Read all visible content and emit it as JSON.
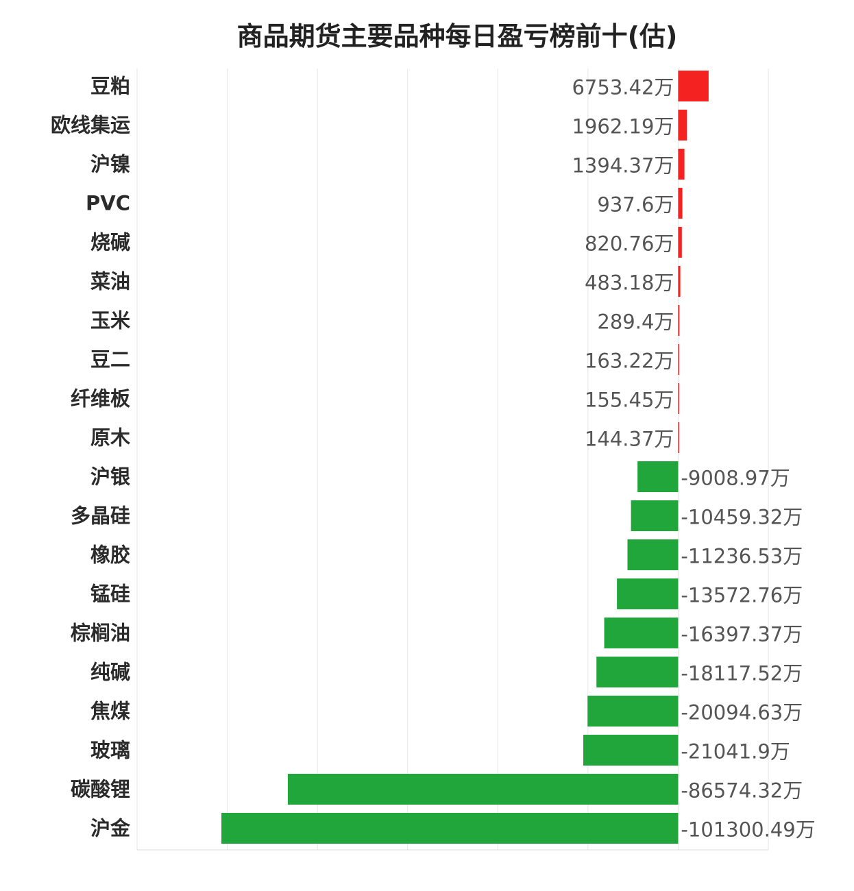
{
  "chart_data": {
    "type": "bar",
    "orientation": "horizontal",
    "title": "商品期货主要品种每日盈亏榜前十(估)",
    "unit_suffix": "万",
    "categories": [
      "豆粕",
      "欧线集运",
      "沪镍",
      "PVC",
      "烧碱",
      "菜油",
      "玉米",
      "豆二",
      "纤维板",
      "原木",
      "沪银",
      "多晶硅",
      "橡胶",
      "锰硅",
      "棕榈油",
      "纯碱",
      "焦煤",
      "玻璃",
      "碳酸锂",
      "沪金"
    ],
    "values": [
      6753.42,
      1962.19,
      1394.37,
      937.6,
      820.76,
      483.18,
      289.4,
      163.22,
      155.45,
      144.37,
      -9008.97,
      -10459.32,
      -11236.53,
      -13572.76,
      -16397.37,
      -18117.52,
      -20094.63,
      -21041.9,
      -86574.32,
      -101300.49
    ],
    "value_labels": [
      "6753.42万",
      "1962.19万",
      "1394.37万",
      "937.6万",
      "820.76万",
      "483.18万",
      "289.4万",
      "163.22万",
      "155.45万",
      "144.37万",
      "-9008.97万",
      "-10459.32万",
      "-11236.53万",
      "-13572.76万",
      "-16397.37万",
      "-18117.52万",
      "-20094.63万",
      "-21041.9万",
      "-86574.32万",
      "-101300.49万"
    ],
    "xlim": [
      -120000,
      20000
    ],
    "grid_step": 20000,
    "grid": true,
    "legend": "none",
    "colors": {
      "positive": "#f52222",
      "negative": "#21a63b",
      "grid": "#e6e6e6"
    }
  }
}
